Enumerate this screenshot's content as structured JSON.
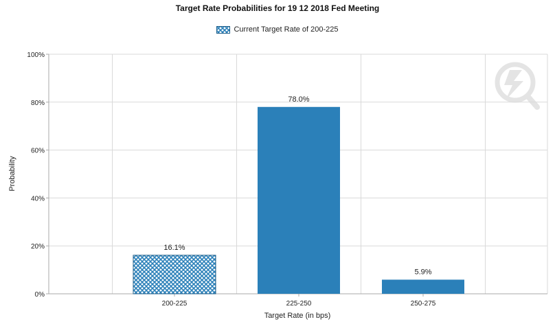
{
  "colors": {
    "bar_fill": "#2b80b9",
    "hatch_fill": "#2b80b9",
    "hatch_background": "#ffffff",
    "grid": "#d9d9d9",
    "axis": "#aaaaaa",
    "text": "#222222",
    "watermark": "#e6e6e6"
  },
  "icons": {
    "watermark": "lightning-magnifier-icon"
  },
  "chart_data": {
    "type": "bar",
    "title": "Target Rate Probabilities for 19 12 2018 Fed Meeting",
    "xlabel": "Target Rate (in bps)",
    "ylabel": "Probability",
    "categories": [
      "200-225",
      "225-250",
      "250-275"
    ],
    "values": [
      16.1,
      78.0,
      5.9
    ],
    "value_labels": [
      "16.1%",
      "78.0%",
      "5.9%"
    ],
    "highlighted_category": "200-225",
    "legend": [
      "Current Target Rate of 200-225"
    ],
    "legend_position": "top-center",
    "ylim": [
      0,
      100
    ],
    "y_ticks": [
      0,
      20,
      40,
      60,
      80,
      100
    ],
    "y_tick_labels": [
      "0%",
      "20%",
      "40%",
      "60%",
      "80%",
      "100%"
    ],
    "grid": true
  }
}
